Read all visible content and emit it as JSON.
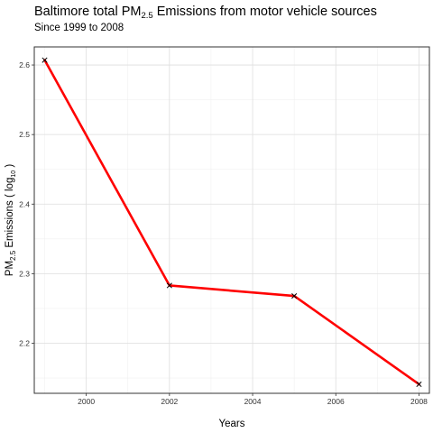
{
  "chart_data": {
    "type": "line",
    "title": {
      "pre": "Baltimore total PM",
      "sub": "2.5",
      "post": " Emissions from motor vehicle sources"
    },
    "subtitle": "Since 1999 to 2008",
    "xlabel": "Years",
    "ylabel": {
      "pre": "PM",
      "sub": "2.5",
      "mid": "  Emissions ( log",
      "sub2": "10",
      "post": " )"
    },
    "x": [
      1999,
      2002,
      2005,
      2008
    ],
    "series": [
      {
        "values": [
          2.607,
          2.283,
          2.268,
          2.141
        ],
        "color": "#ff0000"
      }
    ],
    "marker": "x",
    "marker_color": "#000000",
    "xlim": [
      1998.75,
      2008.25
    ],
    "ylim": [
      2.128,
      2.626
    ],
    "xticks": [
      2000,
      2002,
      2004,
      2006,
      2008
    ],
    "yticks": [
      2.2,
      2.3,
      2.4,
      2.5,
      2.6
    ],
    "ytick_labels": [
      "2.2",
      "2.3",
      "2.4",
      "2.5",
      "2.6"
    ],
    "grid": true,
    "legend": "none"
  }
}
